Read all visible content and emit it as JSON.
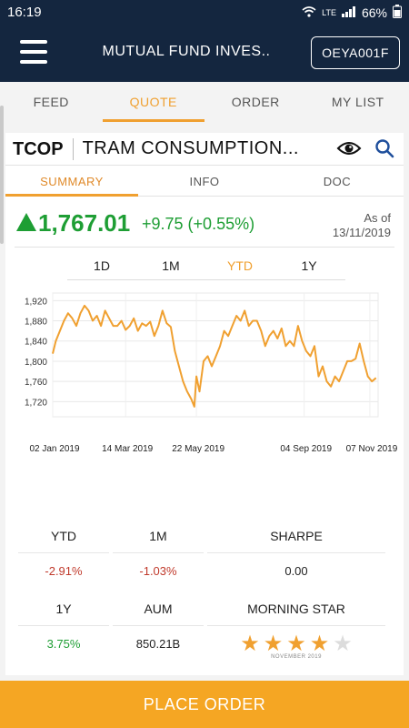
{
  "status": {
    "time": "16:19",
    "network": "LTE",
    "battery": "66%"
  },
  "appbar": {
    "title": "MUTUAL FUND INVES..",
    "account": "OEYA001F"
  },
  "tabs": [
    {
      "label": "FEED",
      "active": false
    },
    {
      "label": "QUOTE",
      "active": true
    },
    {
      "label": "ORDER",
      "active": false
    },
    {
      "label": "MY LIST",
      "active": false
    }
  ],
  "fund": {
    "ticker": "TCOP",
    "name": "TRAM CONSUMPTION..."
  },
  "subtabs": [
    {
      "label": "SUMMARY",
      "active": true
    },
    {
      "label": "INFO",
      "active": false
    },
    {
      "label": "DOC",
      "active": false
    }
  ],
  "quote": {
    "price": "1,767.01",
    "change": "+9.75 (+0.55%)",
    "asof_label": "As of",
    "asof_date": "13/11/2019"
  },
  "periods": [
    {
      "label": "1D",
      "active": false
    },
    {
      "label": "1M",
      "active": false
    },
    {
      "label": "YTD",
      "active": true
    },
    {
      "label": "1Y",
      "active": false
    }
  ],
  "chart_data": {
    "type": "line",
    "ylim": [
      1690,
      1935
    ],
    "yticks": [
      "1,920",
      "1,880",
      "1,840",
      "1,800",
      "1,760",
      "1,720"
    ],
    "yticks_values": [
      1920,
      1880,
      1840,
      1800,
      1760,
      1720
    ],
    "xticks": [
      "02 Jan 2019",
      "14 Mar 2019",
      "22 May 2019",
      "04 Sep 2019",
      "07 Nov 2019"
    ],
    "xticks_days": [
      1,
      72,
      141,
      246,
      310
    ],
    "xlim": [
      1,
      318
    ],
    "line_color": "#f0a030",
    "series": [
      {
        "x": [
          1,
          4,
          8,
          12,
          16,
          20,
          24,
          28,
          32,
          36,
          40,
          44,
          48,
          52,
          56,
          60,
          64,
          68,
          72,
          76,
          80,
          84,
          88,
          92,
          96,
          100,
          104,
          108,
          112,
          116,
          120,
          124,
          128,
          132,
          136,
          139,
          141,
          144,
          148,
          152,
          156,
          160,
          164,
          168,
          172,
          176,
          180,
          184,
          188,
          192,
          196,
          200,
          204,
          208,
          212,
          216,
          220,
          224,
          228,
          232,
          236,
          240,
          244,
          248,
          252,
          256,
          260,
          264,
          268,
          272,
          276,
          280,
          284,
          288,
          292,
          296,
          300,
          304,
          308,
          312,
          316
        ],
        "y": [
          1815,
          1840,
          1860,
          1880,
          1895,
          1885,
          1870,
          1895,
          1910,
          1900,
          1880,
          1890,
          1870,
          1900,
          1885,
          1870,
          1870,
          1880,
          1862,
          1870,
          1885,
          1860,
          1875,
          1870,
          1878,
          1850,
          1870,
          1900,
          1875,
          1868,
          1820,
          1790,
          1760,
          1740,
          1725,
          1710,
          1770,
          1740,
          1800,
          1810,
          1790,
          1810,
          1830,
          1860,
          1850,
          1870,
          1890,
          1880,
          1900,
          1870,
          1880,
          1880,
          1860,
          1830,
          1850,
          1860,
          1845,
          1865,
          1830,
          1840,
          1830,
          1870,
          1840,
          1820,
          1810,
          1830,
          1770,
          1790,
          1760,
          1750,
          1770,
          1760,
          1780,
          1800,
          1800,
          1805,
          1835,
          1800,
          1770,
          1760,
          1767
        ]
      }
    ]
  },
  "stats": {
    "ytd": {
      "label": "YTD",
      "value": "-2.91%"
    },
    "m1": {
      "label": "1M",
      "value": "-1.03%"
    },
    "sharpe": {
      "label": "SHARPE",
      "value": "0.00"
    },
    "y1": {
      "label": "1Y",
      "value": "3.75%"
    },
    "aum": {
      "label": "AUM",
      "value": "850.21B"
    },
    "morningstar": {
      "label": "MORNING STAR",
      "rating": 4,
      "max": 5,
      "date": "NOVEMBER 2019"
    }
  },
  "cta": {
    "label": "PLACE ORDER"
  },
  "colors": {
    "navy": "#14263f",
    "accent": "#f0a030",
    "positive": "#1e9e34",
    "negative": "#c0392b"
  }
}
